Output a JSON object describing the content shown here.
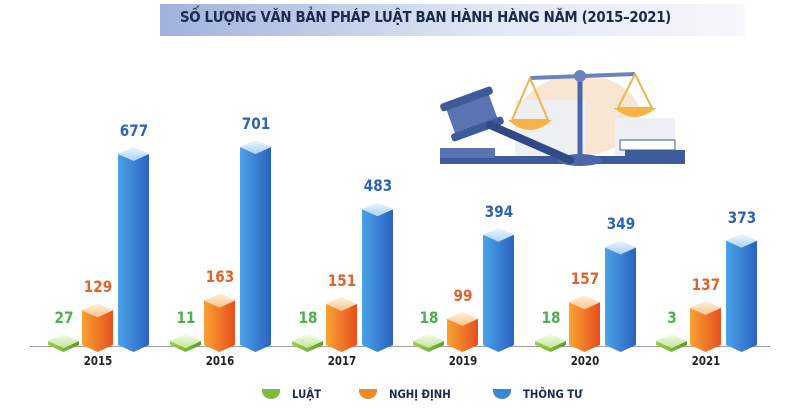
{
  "title": "SỐ LƯỢNG VĂN BẢN PHÁP LUẬT BAN HÀNH HÀNG NĂM (2015–2021)",
  "legend": [
    {
      "label": "LUẬT",
      "color": "#7dbb3a"
    },
    {
      "label": "NGHỊ ĐỊNH",
      "color": "#f08a2a"
    },
    {
      "label": "THÔNG TƯ",
      "color": "#3d87d8"
    }
  ],
  "illustration": "scales-of-justice-and-gavel-icon",
  "chart_data": {
    "type": "bar",
    "title": "SỐ LƯỢNG VĂN BẢN PHÁP LUẬT BAN HÀNH HÀNG NĂM (2015–2021)",
    "categories": [
      "2015",
      "2016",
      "2017",
      "2019",
      "2020",
      "2021"
    ],
    "series": [
      {
        "name": "LUẬT",
        "values": [
          27,
          11,
          18,
          18,
          18,
          3
        ]
      },
      {
        "name": "NGHỊ ĐỊNH",
        "values": [
          129,
          163,
          151,
          99,
          157,
          137
        ]
      },
      {
        "name": "THÔNG TƯ",
        "values": [
          677,
          701,
          483,
          394,
          349,
          373
        ]
      }
    ],
    "xlabel": "",
    "ylabel": "",
    "grid": false,
    "legend_position": "bottom",
    "data_labels": true
  }
}
